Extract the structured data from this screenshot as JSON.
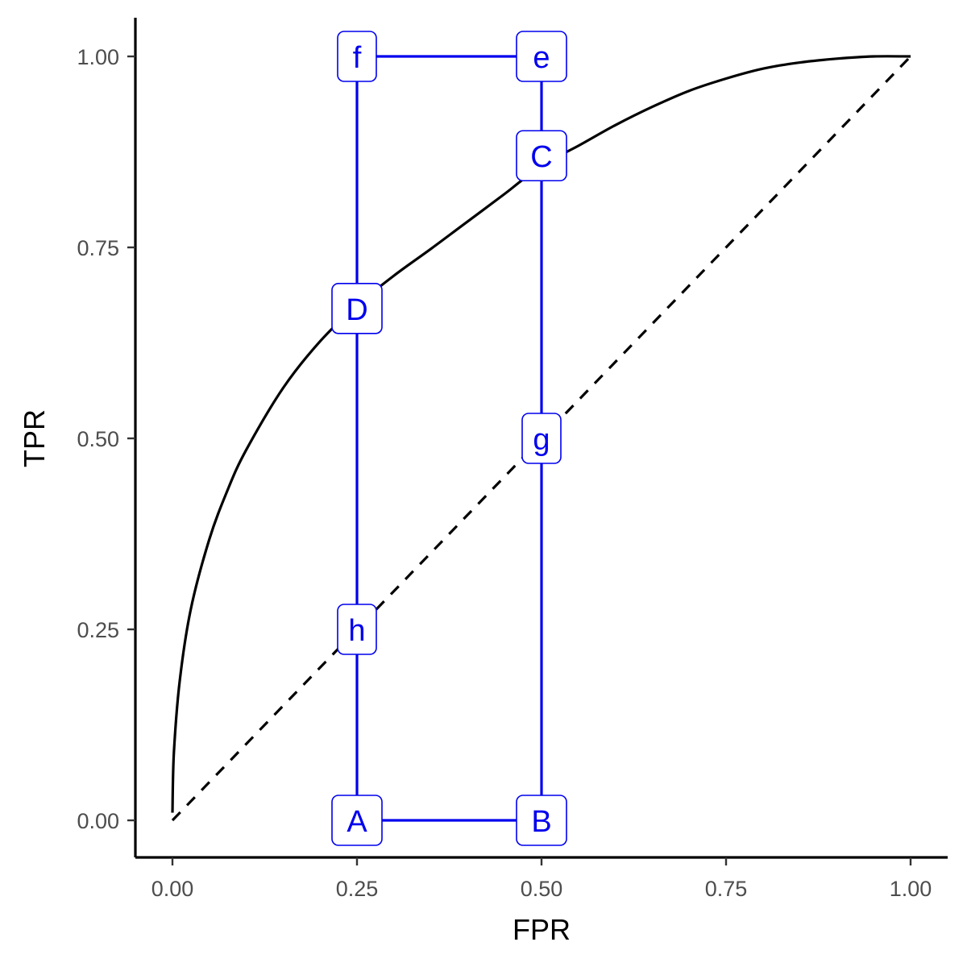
{
  "chart_data": {
    "type": "line",
    "xlabel": "FPR",
    "ylabel": "TPR",
    "xlim": [
      0,
      1
    ],
    "ylim": [
      0,
      1
    ],
    "x_ticks": [
      0,
      0.25,
      0.5,
      0.75,
      1
    ],
    "x_tick_labels": [
      "0.00",
      "0.25",
      "0.50",
      "0.75",
      "1.00"
    ],
    "y_ticks": [
      0,
      0.25,
      0.5,
      0.75,
      1
    ],
    "y_tick_labels": [
      "0.00",
      "0.25",
      "0.50",
      "0.75",
      "1.00"
    ],
    "grid": false,
    "curve": {
      "x": [
        0,
        0.002,
        0.01,
        0.025,
        0.05,
        0.075,
        0.1,
        0.15,
        0.2,
        0.25,
        0.3,
        0.35,
        0.4,
        0.45,
        0.5,
        0.55,
        0.6,
        0.65,
        0.7,
        0.75,
        0.8,
        0.85,
        0.9,
        0.95,
        1
      ],
      "y": [
        0.01,
        0.089,
        0.184,
        0.277,
        0.368,
        0.433,
        0.485,
        0.566,
        0.627,
        0.674,
        0.713,
        0.748,
        0.784,
        0.82,
        0.857,
        0.883,
        0.91,
        0.934,
        0.955,
        0.971,
        0.984,
        0.992,
        0.997,
        1.0,
        1.0
      ],
      "color": "#000000"
    },
    "diagonal": {
      "x": [
        0,
        1
      ],
      "y": [
        0,
        1
      ],
      "color": "#000000",
      "style": "dashed"
    },
    "rectangle_color": "#0000ee",
    "points": [
      {
        "label": "A",
        "x": 0.25,
        "y": 0.0
      },
      {
        "label": "B",
        "x": 0.5,
        "y": 0.0
      },
      {
        "label": "C",
        "x": 0.5,
        "y": 0.87
      },
      {
        "label": "D",
        "x": 0.25,
        "y": 0.67
      },
      {
        "label": "e",
        "x": 0.5,
        "y": 1.0
      },
      {
        "label": "f",
        "x": 0.25,
        "y": 1.0
      },
      {
        "label": "g",
        "x": 0.5,
        "y": 0.5
      },
      {
        "label": "h",
        "x": 0.25,
        "y": 0.25
      }
    ],
    "segments": [
      {
        "from": [
          0.25,
          0
        ],
        "to": [
          0.5,
          0
        ]
      },
      {
        "from": [
          0.25,
          1
        ],
        "to": [
          0.5,
          1
        ]
      },
      {
        "from": [
          0.25,
          0
        ],
        "to": [
          0.25,
          1
        ]
      },
      {
        "from": [
          0.5,
          0
        ],
        "to": [
          0.5,
          1
        ]
      }
    ]
  }
}
